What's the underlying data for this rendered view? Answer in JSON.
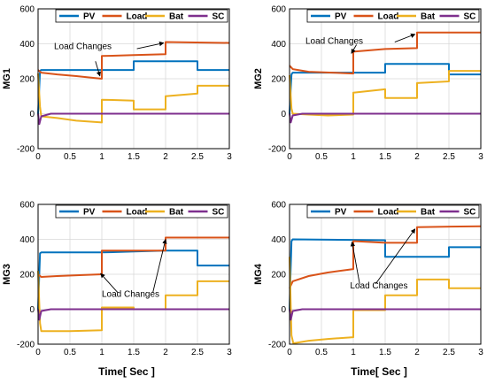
{
  "figure": {
    "x_label": "Time[ Sec ]"
  },
  "chart_data": [
    {
      "type": "line",
      "ylabel": "MG1",
      "xlim": [
        0,
        3
      ],
      "ylim": [
        -200,
        600
      ],
      "xticks": [
        "0",
        "0.5",
        "1",
        "1.5",
        "2",
        "2.5",
        "3"
      ],
      "yticks": [
        "-200",
        "0",
        "200",
        "400",
        "600"
      ],
      "grid": true,
      "legend": "top",
      "series": [
        {
          "name": "PV",
          "color": "#0072bd",
          "x": [
            0,
            0.03,
            0.05,
            1.0,
            1.5,
            1.5,
            2.5,
            2.5,
            3
          ],
          "y": [
            0,
            245,
            250,
            250,
            250,
            300,
            300,
            250,
            250
          ]
        },
        {
          "name": "Load",
          "color": "#d95319",
          "x": [
            0,
            0.05,
            0.3,
            0.6,
            1.0,
            1.0,
            1.5,
            2.0,
            2.0,
            3
          ],
          "y": [
            250,
            235,
            225,
            215,
            200,
            330,
            335,
            340,
            410,
            405
          ]
        },
        {
          "name": "Bat",
          "color": "#edb120",
          "x": [
            0,
            0.03,
            0.05,
            0.3,
            0.6,
            1.0,
            1.0,
            1.5,
            1.5,
            2.0,
            2.0,
            2.5,
            2.5,
            3
          ],
          "y": [
            230,
            40,
            -15,
            -25,
            -40,
            -50,
            80,
            75,
            25,
            25,
            100,
            115,
            160,
            160
          ]
        },
        {
          "name": "SC",
          "color": "#7e2f8e",
          "x": [
            0,
            0.02,
            0.05,
            0.2,
            3
          ],
          "y": [
            0,
            -60,
            -15,
            0,
            0
          ]
        }
      ],
      "annotation": "Load Changes"
    },
    {
      "type": "line",
      "ylabel": "MG2",
      "xlim": [
        0,
        3
      ],
      "ylim": [
        -200,
        600
      ],
      "xticks": [
        "0",
        "0.5",
        "1",
        "1.5",
        "2",
        "2.5",
        "3"
      ],
      "yticks": [
        "-200",
        "0",
        "200",
        "400",
        "600"
      ],
      "grid": true,
      "legend": "top",
      "series": [
        {
          "name": "PV",
          "color": "#0072bd",
          "x": [
            0,
            0.03,
            0.05,
            1.5,
            1.5,
            2.5,
            2.5,
            3
          ],
          "y": [
            0,
            225,
            235,
            235,
            285,
            285,
            225,
            225
          ]
        },
        {
          "name": "Load",
          "color": "#d95319",
          "x": [
            0,
            0.05,
            0.3,
            1.0,
            1.0,
            1.5,
            2.0,
            2.0,
            3
          ],
          "y": [
            275,
            255,
            240,
            230,
            355,
            370,
            375,
            465,
            465
          ]
        },
        {
          "name": "Bat",
          "color": "#edb120",
          "x": [
            0,
            0.03,
            0.05,
            0.3,
            0.6,
            1.0,
            1.0,
            1.5,
            1.5,
            2.0,
            2.0,
            2.5,
            2.5,
            3
          ],
          "y": [
            220,
            30,
            0,
            -5,
            -10,
            -5,
            120,
            140,
            90,
            90,
            175,
            185,
            245,
            245
          ]
        },
        {
          "name": "SC",
          "color": "#7e2f8e",
          "x": [
            0,
            0.02,
            0.05,
            0.2,
            3
          ],
          "y": [
            0,
            -50,
            -10,
            0,
            0
          ]
        }
      ],
      "annotation": "Load Changes"
    },
    {
      "type": "line",
      "ylabel": "MG3",
      "xlim": [
        0,
        3
      ],
      "ylim": [
        -200,
        600
      ],
      "xticks": [
        "0",
        "0.5",
        "1",
        "1.5",
        "2",
        "2.5",
        "3"
      ],
      "yticks": [
        "-200",
        "0",
        "200",
        "400",
        "600"
      ],
      "grid": true,
      "legend": "top",
      "series": [
        {
          "name": "PV",
          "color": "#0072bd",
          "x": [
            0,
            0.03,
            0.05,
            1.0,
            1.5,
            2.0,
            2.5,
            2.5,
            3
          ],
          "y": [
            0,
            320,
            325,
            325,
            330,
            335,
            335,
            250,
            250
          ]
        },
        {
          "name": "Load",
          "color": "#d95319",
          "x": [
            0,
            0.05,
            0.3,
            1.0,
            1.0,
            1.5,
            2.0,
            2.0,
            3
          ],
          "y": [
            200,
            185,
            190,
            200,
            335,
            335,
            335,
            410,
            410
          ]
        },
        {
          "name": "Bat",
          "color": "#edb120",
          "x": [
            0,
            0.03,
            0.05,
            0.5,
            1.0,
            1.0,
            1.5,
            1.5,
            2.0,
            2.0,
            2.5,
            2.5,
            3
          ],
          "y": [
            220,
            -80,
            -125,
            -125,
            -120,
            10,
            10,
            0,
            0,
            80,
            80,
            160,
            160
          ]
        },
        {
          "name": "SC",
          "color": "#7e2f8e",
          "x": [
            0,
            0.02,
            0.05,
            0.2,
            3
          ],
          "y": [
            0,
            -60,
            -10,
            0,
            0
          ]
        }
      ],
      "annotation": "Load Changes"
    },
    {
      "type": "line",
      "ylabel": "MG4",
      "xlim": [
        0,
        3
      ],
      "ylim": [
        -200,
        600
      ],
      "xticks": [
        "0",
        "0.5",
        "1",
        "1.5",
        "2",
        "2.5",
        "3"
      ],
      "yticks": [
        "-200",
        "0",
        "200",
        "400",
        "600"
      ],
      "grid": true,
      "legend": "top",
      "series": [
        {
          "name": "PV",
          "color": "#0072bd",
          "x": [
            0,
            0.03,
            0.05,
            1.5,
            1.5,
            2.5,
            2.5,
            3
          ],
          "y": [
            0,
            390,
            400,
            395,
            300,
            300,
            355,
            355
          ]
        },
        {
          "name": "Load",
          "color": "#d95319",
          "x": [
            0,
            0.05,
            0.3,
            0.6,
            1.0,
            1.0,
            1.5,
            2.0,
            2.0,
            3
          ],
          "y": [
            120,
            160,
            190,
            210,
            230,
            390,
            380,
            380,
            470,
            475
          ]
        },
        {
          "name": "Bat",
          "color": "#edb120",
          "x": [
            0,
            0.03,
            0.06,
            0.3,
            0.6,
            1.0,
            1.0,
            1.5,
            1.5,
            2.0,
            2.0,
            2.5,
            2.5,
            3
          ],
          "y": [
            300,
            -150,
            -195,
            -180,
            -170,
            -160,
            -5,
            -5,
            80,
            80,
            170,
            170,
            120,
            120
          ]
        },
        {
          "name": "SC",
          "color": "#7e2f8e",
          "x": [
            0,
            0.02,
            0.05,
            0.2,
            3
          ],
          "y": [
            0,
            -60,
            -10,
            0,
            0
          ]
        }
      ],
      "annotation": "Load Changes"
    }
  ]
}
